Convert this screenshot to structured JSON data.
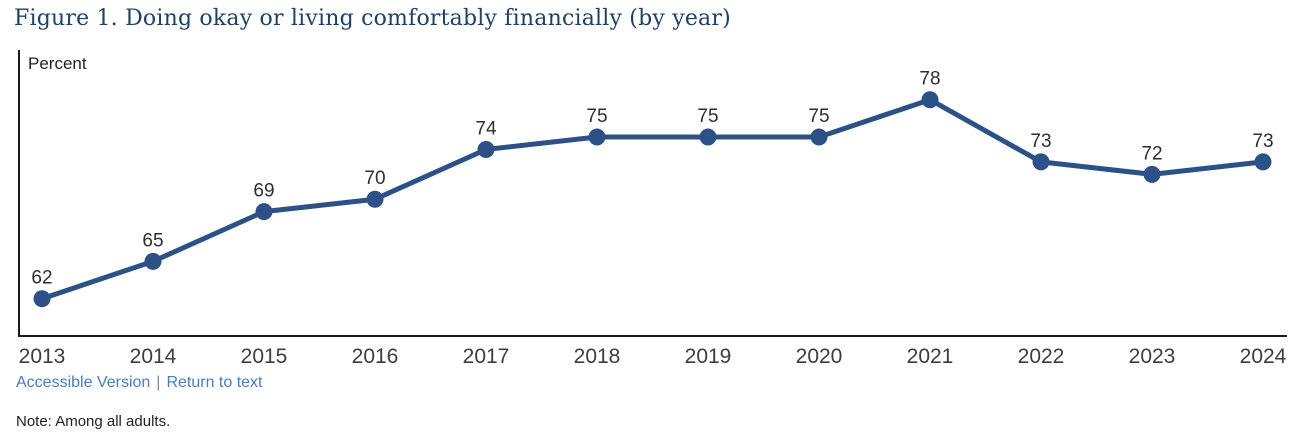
{
  "figure": {
    "title": "Figure 1. Doing okay or living comfortably financially (by year)",
    "links": {
      "accessible_version": "Accessible Version",
      "separator": "|",
      "return_to_text": "Return to text"
    },
    "note": "Note: Among all adults."
  },
  "chart_data": {
    "type": "line",
    "title": "Figure 1. Doing okay or living comfortably financially (by year)",
    "xlabel": "",
    "ylabel": "Percent",
    "categories": [
      "2013",
      "2014",
      "2015",
      "2016",
      "2017",
      "2018",
      "2019",
      "2020",
      "2021",
      "2022",
      "2023",
      "2024"
    ],
    "series": [
      {
        "name": "Doing okay or living comfortably financially",
        "values": [
          62,
          65,
          69,
          70,
          74,
          75,
          75,
          75,
          78,
          73,
          72,
          73
        ]
      }
    ],
    "ylim": [
      59,
      82
    ],
    "grid": false,
    "data_labels": true,
    "legend": "none",
    "line_color": "#2d5186",
    "marker": "circle"
  },
  "colors": {
    "accent": "#2d5186",
    "title_text": "#1e4164",
    "link": "#4a7dbd",
    "axis": "#1a1a1a",
    "tick_label": "#3d3d3d",
    "data_label": "#2e2e2e"
  }
}
